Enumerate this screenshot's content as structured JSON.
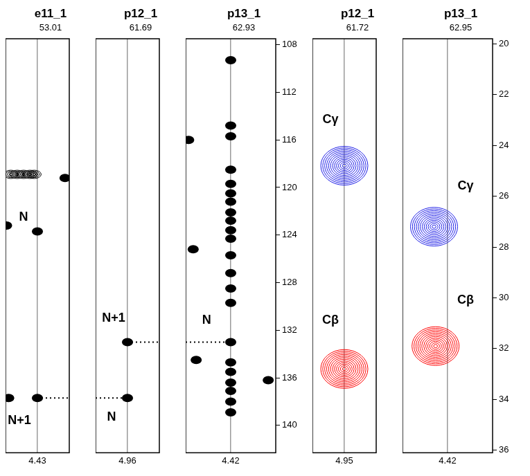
{
  "chart_data": [
    {
      "type": "scatter",
      "title": "e11_1",
      "subtitle": "53.01",
      "xlim": [
        4.73,
        4.13
      ],
      "xticks": [
        4.43
      ],
      "ylim": [
        142.3,
        107.5
      ],
      "grid": true,
      "tick_labels": "x",
      "series": [
        {
          "type": "scatter",
          "marker": "rings",
          "color": "#000000",
          "x": [
            4.68,
            4.62,
            4.56,
            4.5,
            4.46
          ],
          "y": [
            118.9,
            118.9,
            118.9,
            118.9,
            118.9
          ]
        },
        {
          "type": "scatter",
          "marker": "filled",
          "color": "#000000",
          "x": [
            4.43,
            4.43,
            4.72,
            4.7,
            4.17
          ],
          "y": [
            123.7,
            137.7,
            123.2,
            137.7,
            119.2
          ]
        },
        {
          "type": "line",
          "line_style": "dotted",
          "color": "#000000",
          "x": [
            4.43,
            4.13
          ],
          "y": [
            137.7,
            137.7
          ]
        }
      ],
      "annotations": [
        {
          "text": "N",
          "x": 4.56,
          "y": 122.5
        },
        {
          "text": "N+1",
          "x": 4.6,
          "y": 139.6
        }
      ]
    },
    {
      "type": "scatter",
      "title": "p12_1",
      "subtitle": "61.69",
      "xlim": [
        5.26,
        4.66
      ],
      "xticks": [
        4.96
      ],
      "ylim": [
        142.3,
        107.5
      ],
      "grid": true,
      "tick_labels": "x",
      "series": [
        {
          "type": "scatter",
          "marker": "filled",
          "color": "#000000",
          "x": [
            4.96,
            4.96
          ],
          "y": [
            133.0,
            137.7
          ]
        },
        {
          "type": "line",
          "line_style": "dotted",
          "color": "#000000",
          "x": [
            5.26,
            4.96
          ],
          "y": [
            137.7,
            137.7
          ]
        },
        {
          "type": "line",
          "line_style": "dotted",
          "color": "#000000",
          "x": [
            4.96,
            4.66
          ],
          "y": [
            133.0,
            133.0
          ]
        }
      ],
      "annotations": [
        {
          "text": "N+1",
          "x": 5.09,
          "y": 131.0
        },
        {
          "text": "N",
          "x": 5.11,
          "y": 139.3
        }
      ]
    },
    {
      "type": "scatter",
      "title": "p13_1",
      "subtitle": "62.93",
      "xlim": [
        4.72,
        4.12
      ],
      "xticks": [
        4.42
      ],
      "ylim": [
        142.3,
        107.5
      ],
      "yticks": [
        108,
        112,
        116,
        120,
        124,
        128,
        132,
        136,
        140
      ],
      "grid": true,
      "series": [
        {
          "type": "scatter",
          "marker": "filled",
          "color": "#000000",
          "x": [
            4.42,
            4.42,
            4.42,
            4.42,
            4.42,
            4.42,
            4.42,
            4.42,
            4.42,
            4.42,
            4.42,
            4.42,
            4.42,
            4.42,
            4.42,
            4.42,
            4.42,
            4.42,
            4.42,
            4.42,
            4.42,
            4.42,
            4.7,
            4.67,
            4.65,
            4.17
          ],
          "y": [
            109.3,
            114.8,
            115.7,
            118.5,
            119.7,
            120.5,
            121.2,
            122.1,
            122.8,
            123.6,
            124.3,
            125.7,
            127.2,
            128.5,
            129.7,
            133.0,
            134.7,
            135.5,
            136.4,
            137.1,
            138.0,
            138.9,
            116.0,
            125.2,
            134.5,
            136.2
          ]
        },
        {
          "type": "line",
          "line_style": "dotted",
          "color": "#000000",
          "x": [
            4.72,
            4.42
          ],
          "y": [
            133.0,
            133.0
          ]
        }
      ],
      "annotations": [
        {
          "text": "N",
          "x": 4.58,
          "y": 131.2
        }
      ]
    },
    {
      "type": "scatter",
      "title": "p12_1",
      "subtitle": "61.72",
      "xlim": [
        5.25,
        4.65
      ],
      "xticks": [
        4.95
      ],
      "ylim": [
        36.1,
        19.8
      ],
      "grid": true,
      "tick_labels": "x",
      "series": [
        {
          "type": "scatter",
          "marker": "contour",
          "color": "#1f1fe6",
          "x": [
            4.95
          ],
          "y": [
            24.8
          ]
        },
        {
          "type": "scatter",
          "marker": "contour",
          "color": "#ff0000",
          "x": [
            4.95
          ],
          "y": [
            32.8
          ]
        }
      ],
      "annotations": [
        {
          "text": "Cγ",
          "x": 5.08,
          "y": 23.0
        },
        {
          "text": "Cβ",
          "x": 5.08,
          "y": 30.9
        }
      ]
    },
    {
      "type": "scatter",
      "title": "p13_1",
      "subtitle": "62.95",
      "xlim": [
        4.72,
        4.12
      ],
      "xticks": [
        4.42
      ],
      "ylim": [
        36.1,
        19.8
      ],
      "yticks": [
        20,
        22,
        24,
        26,
        28,
        30,
        32,
        34,
        36
      ],
      "grid": true,
      "series": [
        {
          "type": "scatter",
          "marker": "contour",
          "color": "#1f1fe6",
          "x": [
            4.51
          ],
          "y": [
            27.2
          ]
        },
        {
          "type": "scatter",
          "marker": "contour",
          "color": "#ff0000",
          "x": [
            4.5
          ],
          "y": [
            31.9
          ]
        }
      ],
      "annotations": [
        {
          "text": "Cγ",
          "x": 4.3,
          "y": 25.6
        },
        {
          "text": "Cβ",
          "x": 4.3,
          "y": 30.1
        }
      ]
    }
  ]
}
